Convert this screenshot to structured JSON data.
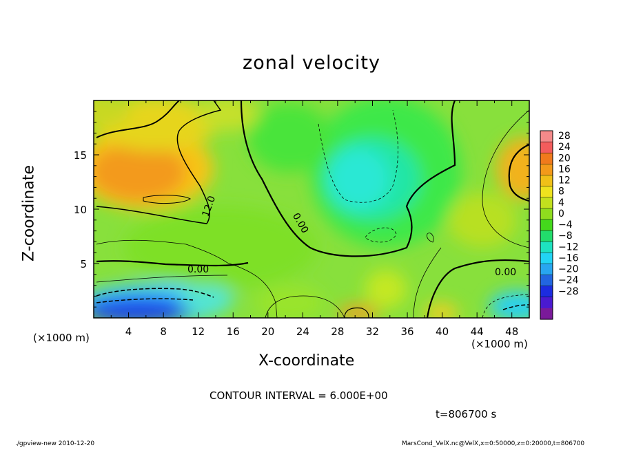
{
  "chart_data": {
    "type": "heatmap",
    "title": "zonal velocity",
    "xlabel": "X-coordinate",
    "ylabel": "Z-coordinate",
    "x_unit": "(×1000 m)",
    "y_unit": "(×1000 m)",
    "xlim": [
      0,
      50
    ],
    "ylim": [
      0,
      20
    ],
    "x_ticks": [
      4,
      8,
      12,
      16,
      20,
      24,
      28,
      32,
      36,
      40,
      44,
      48
    ],
    "y_ticks": [
      5,
      10,
      15
    ],
    "colorbar": {
      "labels": [
        "28",
        "24",
        "20",
        "16",
        "12",
        "8",
        "4",
        "0",
        "−4",
        "−8",
        "−12",
        "−16",
        "−20",
        "−24",
        "−28"
      ],
      "min": -30,
      "max": 30
    },
    "contour_labels": [
      "12.0",
      "0.00",
      "0.00",
      "0.00"
    ],
    "contour_interval": "CONTOUR INTERVAL = 6.000E+00",
    "time": "t=806700 s"
  },
  "footer": {
    "left": "./gpview-new 2010-12-20",
    "right": "MarsCond_VelX.nc@VelX,x=0:50000,z=0:20000,t=806700"
  },
  "colors": {
    "frame": "#000000",
    "background": "#ffffff"
  }
}
